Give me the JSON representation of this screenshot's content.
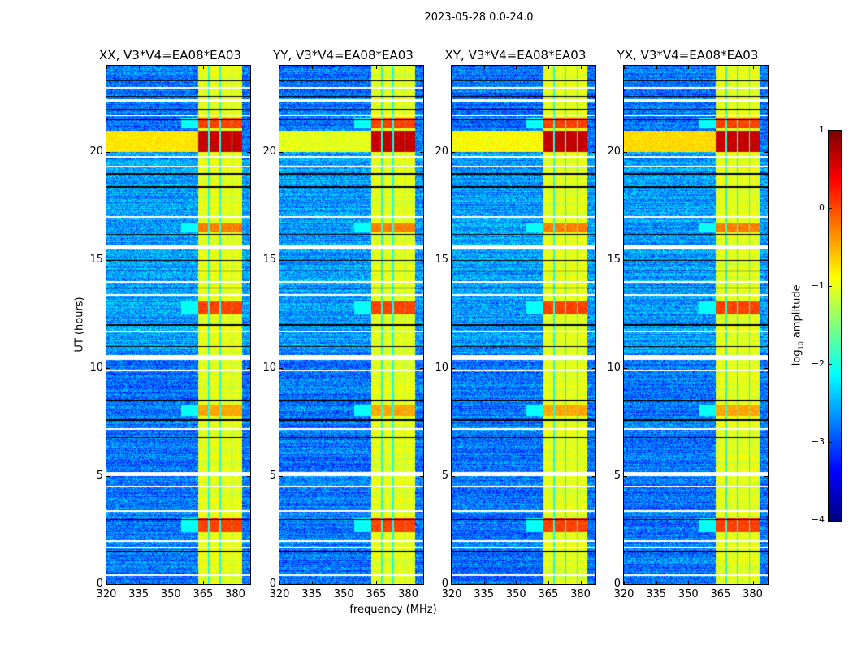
{
  "chart_data": {
    "type": "heatmap",
    "title": "2023-05-28 0.0-24.0",
    "xlabel": "frequency (MHz)",
    "ylabel": "UT (hours)",
    "xlim": [
      320,
      387
    ],
    "ylim": [
      0,
      24
    ],
    "xticks": [
      "320",
      "335",
      "350",
      "365",
      "380"
    ],
    "xtick_values": [
      320,
      335,
      350,
      365,
      380
    ],
    "yticks": [
      "0",
      "5",
      "10",
      "15",
      "20"
    ],
    "ytick_values": [
      0,
      5,
      10,
      15,
      20
    ],
    "colormap": "jet",
    "panels": [
      {
        "title": "XX, V3*V4=EA08*EA03",
        "low_freq_leak": 0.6
      },
      {
        "title": "YY, V3*V4=EA08*EA03",
        "low_freq_leak": 1.0
      },
      {
        "title": "XY, V3*V4=EA08*EA03",
        "low_freq_leak": 0.8
      },
      {
        "title": "YX, V3*V4=EA08*EA03",
        "low_freq_leak": 0.5
      }
    ],
    "background_log_amplitude": -2.8,
    "strong_subbands_mhz": [
      [
        362.6,
        367.5
      ],
      [
        368.0,
        372.8
      ],
      [
        373.3,
        378.3
      ],
      [
        378.8,
        383.1
      ]
    ],
    "subband_level_log_amplitude": -1.0,
    "bright_episodes_ut": [
      {
        "range": [
          20.0,
          21.0
        ],
        "peak": 0.8
      },
      {
        "range": [
          21.1,
          21.6
        ],
        "peak": 0.2
      },
      {
        "range": [
          16.3,
          16.7
        ],
        "peak": -0.1
      },
      {
        "range": [
          12.5,
          13.1
        ],
        "peak": 0.2
      },
      {
        "range": [
          7.8,
          8.3
        ],
        "peak": -0.3
      },
      {
        "range": [
          2.4,
          3.1
        ],
        "peak": 0.2
      }
    ],
    "flagged_white_ut": [
      23.0,
      22.4,
      21.7,
      19.8,
      19.35,
      17.0,
      15.6,
      14.0,
      13.4,
      11.7,
      10.5,
      9.9,
      7.2,
      5.1,
      4.5,
      3.4,
      2.0,
      1.7,
      0.4
    ],
    "flagged_black_ut": [
      23.3,
      22.6,
      22.0,
      21.5,
      19.0,
      18.4,
      16.2,
      15.0,
      14.5,
      13.7,
      12.0,
      11.0,
      8.5,
      7.6,
      6.8,
      3.0,
      1.5
    ],
    "colorbar": {
      "label_prefix": "log",
      "label_sub": "10",
      "label_suffix": " amplitude",
      "range": [
        -4,
        1
      ],
      "ticks": [
        "1",
        "0",
        "−1",
        "−2",
        "−3",
        "−4"
      ],
      "tick_values": [
        1,
        0,
        -1,
        -2,
        -3,
        -4
      ]
    }
  }
}
